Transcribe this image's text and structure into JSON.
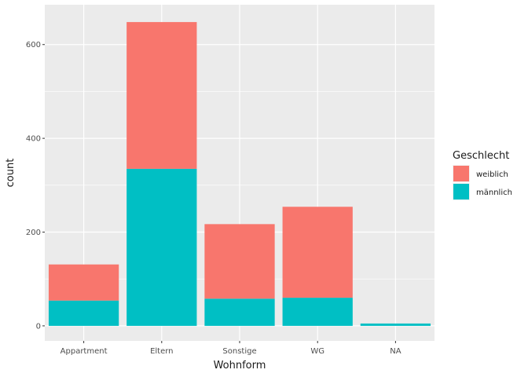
{
  "chart_data": {
    "type": "bar",
    "stacked": true,
    "xlabel": "Wohnform",
    "ylabel": "count",
    "categories": [
      "Appartment",
      "Eltern",
      "Sonstige",
      "WG",
      "NA"
    ],
    "series": [
      {
        "name": "männlich",
        "values": [
          54,
          335,
          58,
          60,
          5
        ],
        "color": "#00BFC4"
      },
      {
        "name": "weiblich",
        "values": [
          77,
          313,
          159,
          194,
          0
        ],
        "color": "#F8766D"
      }
    ],
    "ylim": [
      -32,
      685
    ],
    "yticks": [
      0,
      200,
      400,
      600
    ],
    "grid": true,
    "panel_color": "#EBEBEB",
    "legend": {
      "title": "Geschlecht",
      "position": "right",
      "order": [
        "weiblich",
        "männlich"
      ]
    }
  }
}
